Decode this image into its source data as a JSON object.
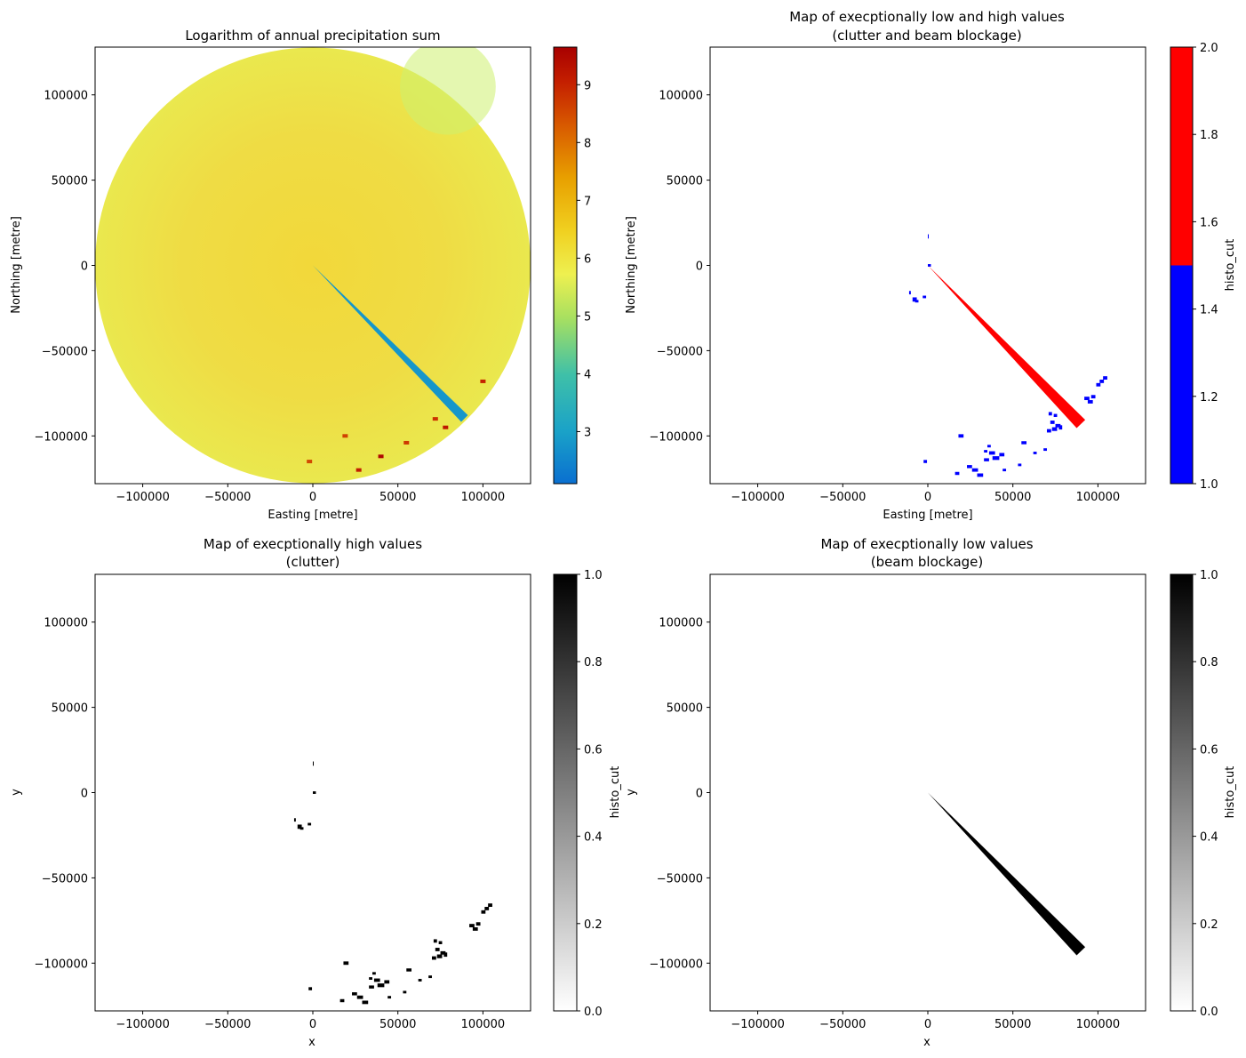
{
  "chart_data": [
    {
      "type": "heatmap",
      "title": "Logarithm of annual precipitation sum",
      "xlabel": "Easting [metre]",
      "ylabel": "Northing [metre]",
      "xlim": [
        -128000,
        128000
      ],
      "ylim": [
        -128000,
        128000
      ],
      "xticks": [
        -100000,
        -50000,
        0,
        50000,
        100000
      ],
      "xtick_labels": [
        "−100000",
        "−50000",
        "0",
        "50000",
        "100000"
      ],
      "yticks": [
        -100000,
        -50000,
        0,
        50000,
        100000
      ],
      "ytick_labels": [
        "−100000",
        "−50000",
        "0",
        "50000",
        "100000"
      ],
      "radar_range": 128000,
      "colormap": "jet-like (blue-cyan-green-yellow-orange-red)",
      "colorbar": {
        "label": "",
        "range": [
          2.1,
          9.65
        ],
        "ticks": [
          3,
          4,
          5,
          6,
          7,
          8,
          9
        ],
        "tick_labels": [
          "3",
          "4",
          "5",
          "6",
          "7",
          "8",
          "9"
        ]
      },
      "background_value": 5.8,
      "blocked_wedge": {
        "azimuth_deg": [
          134,
          136.5
        ],
        "range": [
          0,
          128000
        ],
        "value": 2.8
      },
      "hotspots": [
        {
          "x": 100000,
          "y": -68000,
          "value": 9.0
        },
        {
          "x": 72000,
          "y": -90000,
          "value": 8.8
        },
        {
          "x": 78000,
          "y": -95000,
          "value": 9.2
        },
        {
          "x": 40000,
          "y": -112000,
          "value": 9.5
        },
        {
          "x": 27000,
          "y": -120000,
          "value": 9.1
        },
        {
          "x": 19000,
          "y": -100000,
          "value": 8.6
        },
        {
          "x": -2000,
          "y": -115000,
          "value": 8.5
        },
        {
          "x": 55000,
          "y": -104000,
          "value": 8.7
        }
      ]
    },
    {
      "type": "heatmap",
      "title": "Map of execptionally low and high values",
      "subtitle": "(clutter and beam blockage)",
      "xlabel": "Easting [metre]",
      "ylabel": "Northing [metre]",
      "xlim": [
        -128000,
        128000
      ],
      "ylim": [
        -128000,
        128000
      ],
      "xticks": [
        -100000,
        -50000,
        0,
        50000,
        100000
      ],
      "xtick_labels": [
        "−100000",
        "−50000",
        "0",
        "50000",
        "100000"
      ],
      "yticks": [
        -100000,
        -50000,
        0,
        50000,
        100000
      ],
      "ytick_labels": [
        "−100000",
        "−50000",
        "0",
        "50000",
        "100000"
      ],
      "colorbar": {
        "label": "histo_cut",
        "range": [
          1.0,
          2.0
        ],
        "ticks": [
          1.0,
          1.2,
          1.4,
          1.6,
          1.8,
          2.0
        ],
        "tick_labels": [
          "1.0",
          "1.2",
          "1.4",
          "1.6",
          "1.8",
          "2.0"
        ],
        "colors": [
          "#0000ff",
          "#ff0000"
        ]
      }
    },
    {
      "type": "heatmap",
      "title": "Map of execptionally high values",
      "subtitle": "(clutter)",
      "xlabel": "x",
      "ylabel": "y",
      "xlim": [
        -128000,
        128000
      ],
      "ylim": [
        -128000,
        128000
      ],
      "xticks": [
        -100000,
        -50000,
        0,
        50000,
        100000
      ],
      "xtick_labels": [
        "−100000",
        "−50000",
        "0",
        "50000",
        "100000"
      ],
      "yticks": [
        -100000,
        -50000,
        0,
        50000,
        100000
      ],
      "ytick_labels": [
        "−100000",
        "−50000",
        "0",
        "50000",
        "100000"
      ],
      "colorbar": {
        "label": "histo_cut",
        "range": [
          0.0,
          1.0
        ],
        "ticks": [
          0.0,
          0.2,
          0.4,
          0.6,
          0.8,
          1.0
        ],
        "tick_labels": [
          "0.0",
          "0.2",
          "0.4",
          "0.6",
          "0.8",
          "1.0"
        ],
        "colormap": "gray_r"
      }
    },
    {
      "type": "heatmap",
      "title": "Map of execptionally low values",
      "subtitle": "(beam blockage)",
      "xlabel": "x",
      "ylabel": "y",
      "xlim": [
        -128000,
        128000
      ],
      "ylim": [
        -128000,
        128000
      ],
      "xticks": [
        -100000,
        -50000,
        0,
        50000,
        100000
      ],
      "xtick_labels": [
        "−100000",
        "−50000",
        "0",
        "50000",
        "100000"
      ],
      "yticks": [
        -100000,
        -50000,
        0,
        50000,
        100000
      ],
      "ytick_labels": [
        "−100000",
        "−50000",
        "0",
        "50000",
        "100000"
      ],
      "colorbar": {
        "label": "histo_cut",
        "range": [
          0.0,
          1.0
        ],
        "ticks": [
          0.0,
          0.2,
          0.4,
          0.6,
          0.8,
          1.0
        ],
        "tick_labels": [
          "0.0",
          "0.2",
          "0.4",
          "0.6",
          "0.8",
          "1.0"
        ],
        "colormap": "gray_r"
      }
    }
  ],
  "clutter_patches": [
    {
      "x": 0,
      "y": 17000,
      "w": 400,
      "h": 2500
    },
    {
      "x": 0,
      "y": 0,
      "w": 1800,
      "h": 1500
    },
    {
      "x": -11000,
      "y": -16000,
      "w": 1000,
      "h": 2000
    },
    {
      "x": -9000,
      "y": -20000,
      "w": 2500,
      "h": 2500
    },
    {
      "x": -7500,
      "y": -21000,
      "w": 2000,
      "h": 1500
    },
    {
      "x": -3000,
      "y": -18500,
      "w": 2000,
      "h": 1500
    },
    {
      "x": -2500,
      "y": -115000,
      "w": 2000,
      "h": 1800
    },
    {
      "x": 18000,
      "y": -100000,
      "w": 3000,
      "h": 2000
    },
    {
      "x": 16000,
      "y": -122000,
      "w": 2500,
      "h": 1800
    },
    {
      "x": 23000,
      "y": -118000,
      "w": 3000,
      "h": 1800
    },
    {
      "x": 26000,
      "y": -120000,
      "w": 3500,
      "h": 2000
    },
    {
      "x": 29000,
      "y": -123000,
      "w": 3500,
      "h": 2000
    },
    {
      "x": 33000,
      "y": -114000,
      "w": 3000,
      "h": 1800
    },
    {
      "x": 36000,
      "y": -110000,
      "w": 3500,
      "h": 2000
    },
    {
      "x": 38000,
      "y": -113000,
      "w": 4000,
      "h": 2200
    },
    {
      "x": 42000,
      "y": -111000,
      "w": 3000,
      "h": 2000
    },
    {
      "x": 35000,
      "y": -106000,
      "w": 2000,
      "h": 1500
    },
    {
      "x": 33000,
      "y": -109000,
      "w": 2000,
      "h": 1500
    },
    {
      "x": 44000,
      "y": -120000,
      "w": 2000,
      "h": 1500
    },
    {
      "x": 53000,
      "y": -117000,
      "w": 2000,
      "h": 1500
    },
    {
      "x": 55000,
      "y": -104000,
      "w": 3000,
      "h": 1800
    },
    {
      "x": 62000,
      "y": -110000,
      "w": 2000,
      "h": 1500
    },
    {
      "x": 68000,
      "y": -108000,
      "w": 2000,
      "h": 1500
    },
    {
      "x": 71000,
      "y": -87000,
      "w": 2000,
      "h": 2000
    },
    {
      "x": 74000,
      "y": -88000,
      "w": 2000,
      "h": 1800
    },
    {
      "x": 72000,
      "y": -92000,
      "w": 2500,
      "h": 2000
    },
    {
      "x": 70000,
      "y": -97000,
      "w": 2500,
      "h": 2000
    },
    {
      "x": 73000,
      "y": -96000,
      "w": 3000,
      "h": 2200
    },
    {
      "x": 75000,
      "y": -94000,
      "w": 3000,
      "h": 2000
    },
    {
      "x": 77000,
      "y": -95000,
      "w": 2000,
      "h": 2500
    },
    {
      "x": 92000,
      "y": -78000,
      "w": 3000,
      "h": 2000
    },
    {
      "x": 94000,
      "y": -80000,
      "w": 3000,
      "h": 2000
    },
    {
      "x": 96000,
      "y": -77000,
      "w": 2500,
      "h": 2000
    },
    {
      "x": 99000,
      "y": -70000,
      "w": 2500,
      "h": 2000
    },
    {
      "x": 101000,
      "y": -68000,
      "w": 2500,
      "h": 2000
    },
    {
      "x": 103000,
      "y": -66000,
      "w": 2500,
      "h": 2000
    }
  ],
  "blockage_wedge": {
    "start": [
      0,
      0
    ],
    "end": [
      90000,
      -93000
    ],
    "half_width_end": 3500
  }
}
